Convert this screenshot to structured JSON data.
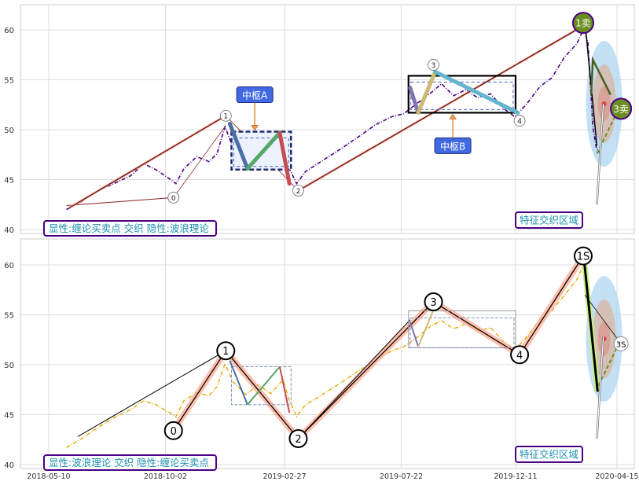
{
  "chart_data": [
    {
      "type": "line",
      "panel": "top",
      "ylim": [
        39.7,
        62.6
      ],
      "yticks": [
        40,
        45,
        50,
        55,
        60
      ],
      "grid": true,
      "caption": "显性:缠论买卖点 交织 隐性:波浪理论",
      "wave_points": [
        {
          "label": "0",
          "x": "2018-10-12",
          "y": 43.2
        },
        {
          "label": "1",
          "x": "2018-12-16",
          "y": 51.4
        },
        {
          "label": "2",
          "x": "2019-03-16",
          "y": 43.9
        },
        {
          "label": "3",
          "x": "2019-08-31",
          "y": 56.5
        },
        {
          "label": "4",
          "x": "2019-12-16",
          "y": 50.9
        }
      ],
      "zhongshu": [
        {
          "label": "中枢A",
          "x0": "2018-12-23",
          "x1": "2019-03-07",
          "y0": 46.0,
          "y1": 49.8
        },
        {
          "label": "中枢B",
          "x0": "2019-07-31",
          "x1": "2019-12-11",
          "y0": 51.7,
          "y1": 55.4
        }
      ],
      "trade_points": [
        {
          "label": "1卖",
          "x": "2020-03-04",
          "y": 60.7
        },
        {
          "label": "3卖",
          "x": "2020-04-20",
          "y": 52.1
        }
      ],
      "region_label": "特征交织区域",
      "series": [
        {
          "name": "price",
          "color": "#4b0082",
          "values": [
            [
              "2018-06-01",
              42.0
            ],
            [
              "2018-06-20",
              42.8
            ],
            [
              "2018-07-10",
              43.9
            ],
            [
              "2018-07-30",
              44.6
            ],
            [
              "2018-08-20",
              45.4
            ],
            [
              "2018-09-05",
              46.6
            ],
            [
              "2018-09-20",
              46.0
            ],
            [
              "2018-10-05",
              45.2
            ],
            [
              "2018-10-15",
              44.6
            ],
            [
              "2018-10-25",
              46.1
            ],
            [
              "2018-11-10",
              47.3
            ],
            [
              "2018-11-25",
              46.8
            ],
            [
              "2018-12-05",
              47.6
            ],
            [
              "2018-12-15",
              50.3
            ],
            [
              "2018-12-25",
              48.2
            ],
            [
              "2019-01-10",
              47.1
            ],
            [
              "2019-01-25",
              48.1
            ],
            [
              "2019-02-10",
              46.9
            ],
            [
              "2019-02-25",
              48.4
            ],
            [
              "2019-03-05",
              46.1
            ],
            [
              "2019-03-14",
              44.6
            ],
            [
              "2019-03-25",
              45.8
            ],
            [
              "2019-04-15",
              46.9
            ],
            [
              "2019-05-10",
              48.2
            ],
            [
              "2019-05-30",
              49.3
            ],
            [
              "2019-06-20",
              50.5
            ],
            [
              "2019-07-10",
              51.3
            ],
            [
              "2019-07-25",
              51.6
            ],
            [
              "2019-08-10",
              52.6
            ],
            [
              "2019-08-28",
              53.7
            ],
            [
              "2019-09-10",
              54.6
            ],
            [
              "2019-09-25",
              53.4
            ],
            [
              "2019-10-10",
              54.0
            ],
            [
              "2019-10-25",
              53.2
            ],
            [
              "2019-11-10",
              53.6
            ],
            [
              "2019-11-25",
              52.2
            ],
            [
              "2019-12-10",
              51.3
            ],
            [
              "2019-12-25",
              52.6
            ],
            [
              "2020-01-10",
              54.3
            ],
            [
              "2020-01-25",
              55.2
            ],
            [
              "2020-02-10",
              57.3
            ],
            [
              "2020-02-25",
              58.6
            ],
            [
              "2020-03-05",
              60.2
            ],
            [
              "2020-03-10",
              58.7
            ],
            [
              "2020-03-16",
              50.3
            ],
            [
              "2020-03-20",
              48.3
            ],
            [
              "2020-03-25",
              47.6
            ]
          ]
        }
      ]
    },
    {
      "type": "line",
      "panel": "bottom",
      "ylim": [
        39.7,
        62.6
      ],
      "yticks": [
        40,
        45,
        50,
        55,
        60
      ],
      "grid": true,
      "caption": "显性:波浪理论 交织 隐性:缠论买卖点",
      "wave_points": [
        {
          "label": "0",
          "x": "2018-10-12",
          "y": 43.4
        },
        {
          "label": "1",
          "x": "2018-12-16",
          "y": 51.4
        },
        {
          "label": "2",
          "x": "2019-03-16",
          "y": 42.6
        },
        {
          "label": "3",
          "x": "2019-08-31",
          "y": 56.3
        },
        {
          "label": "4",
          "x": "2019-12-16",
          "y": 51.0
        },
        {
          "label": "1S",
          "x": "2020-03-04",
          "y": 60.9
        },
        {
          "label": "3S",
          "x": "2020-04-20",
          "y": 52.1
        }
      ],
      "region_label": "特征交织区域",
      "xticks": [
        "2018-05-10",
        "2018-10-02",
        "2019-02-27",
        "2019-07-22",
        "2019-12-11",
        "2020-04-15"
      ],
      "series": [
        {
          "name": "price",
          "color": "#e0a800",
          "values": [
            [
              "2018-06-01",
              41.7
            ],
            [
              "2018-06-20",
              42.6
            ],
            [
              "2018-07-10",
              43.7
            ],
            [
              "2018-07-30",
              44.7
            ],
            [
              "2018-08-20",
              45.5
            ],
            [
              "2018-09-05",
              46.4
            ],
            [
              "2018-09-20",
              46.0
            ],
            [
              "2018-10-05",
              45.3
            ],
            [
              "2018-10-15",
              44.8
            ],
            [
              "2018-10-25",
              46.4
            ],
            [
              "2018-11-10",
              47.2
            ],
            [
              "2018-11-25",
              46.9
            ],
            [
              "2018-12-05",
              47.8
            ],
            [
              "2018-12-15",
              50.1
            ],
            [
              "2018-12-25",
              48.3
            ],
            [
              "2019-01-10",
              47.0
            ],
            [
              "2019-01-25",
              48.0
            ],
            [
              "2019-02-10",
              47.1
            ],
            [
              "2019-02-25",
              48.5
            ],
            [
              "2019-03-05",
              46.4
            ],
            [
              "2019-03-14",
              44.8
            ],
            [
              "2019-03-25",
              46.0
            ],
            [
              "2019-04-15",
              47.0
            ],
            [
              "2019-05-10",
              48.3
            ],
            [
              "2019-05-30",
              49.4
            ],
            [
              "2019-06-20",
              50.4
            ],
            [
              "2019-07-10",
              51.4
            ],
            [
              "2019-07-25",
              51.8
            ],
            [
              "2019-08-10",
              52.7
            ],
            [
              "2019-08-28",
              53.9
            ],
            [
              "2019-09-10",
              54.4
            ],
            [
              "2019-09-25",
              53.6
            ],
            [
              "2019-10-10",
              54.1
            ],
            [
              "2019-10-25",
              53.4
            ],
            [
              "2019-11-10",
              53.7
            ],
            [
              "2019-11-25",
              52.4
            ],
            [
              "2019-12-10",
              51.5
            ],
            [
              "2019-12-25",
              52.8
            ],
            [
              "2020-01-10",
              54.5
            ],
            [
              "2020-01-25",
              55.4
            ],
            [
              "2020-02-10",
              57.0
            ],
            [
              "2020-02-25",
              58.5
            ],
            [
              "2020-03-05",
              60.1
            ],
            [
              "2020-03-10",
              58.9
            ],
            [
              "2020-03-16",
              51.0
            ],
            [
              "2020-03-20",
              48.8
            ],
            [
              "2020-03-25",
              48.0
            ]
          ]
        }
      ]
    }
  ]
}
